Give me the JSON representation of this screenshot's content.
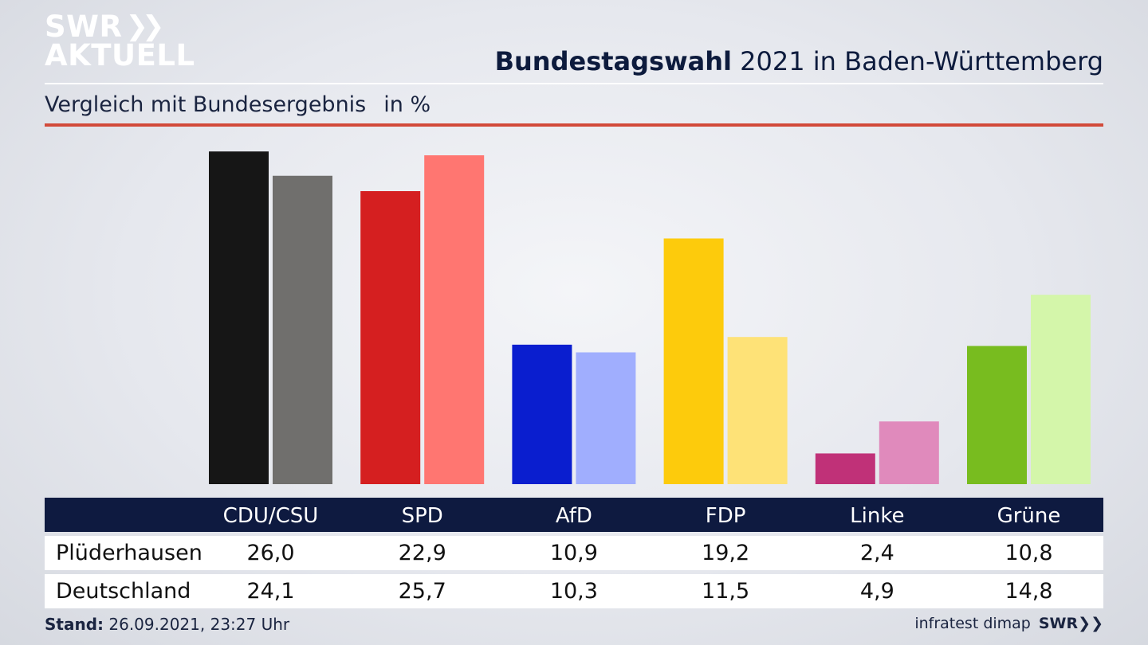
{
  "brand": {
    "line1": "SWR",
    "line2": "AKTUELL"
  },
  "header": {
    "title_bold": "Bundestagswahl",
    "title_rest": " 2021 in Baden-Württemberg",
    "subtitle": "Vergleich mit Bundesergebnis",
    "unit": "in %"
  },
  "chart_data": {
    "type": "bar",
    "categories": [
      "CDU/CSU",
      "SPD",
      "AfD",
      "FDP",
      "Linke",
      "Grüne"
    ],
    "series": [
      {
        "name": "Plüderhausen",
        "values": [
          26.0,
          22.9,
          10.9,
          19.2,
          2.4,
          10.8
        ],
        "labels": [
          "26,0",
          "22,9",
          "10,9",
          "19,2",
          "2,4",
          "10,8"
        ],
        "colors": [
          "#161616",
          "#d51f20",
          "#0a1ecf",
          "#fdcb0c",
          "#c03178",
          "#78bc1f"
        ]
      },
      {
        "name": "Deutschland",
        "values": [
          24.1,
          25.7,
          10.3,
          11.5,
          4.9,
          14.8
        ],
        "labels": [
          "24,1",
          "25,7",
          "10,3",
          "11,5",
          "4,9",
          "14,8"
        ],
        "colors": [
          "#706f6d",
          "#ff7671",
          "#a0aefe",
          "#fee277",
          "#e08abc",
          "#d4f6aa"
        ]
      }
    ],
    "ylim": [
      0,
      26.2
    ],
    "grid": false,
    "legend": "table-below"
  },
  "footer": {
    "stand_label": "Stand:",
    "stand_value": " 26.09.2021, 23:27 Uhr",
    "source": "infratest dimap",
    "logo": "SWR"
  }
}
